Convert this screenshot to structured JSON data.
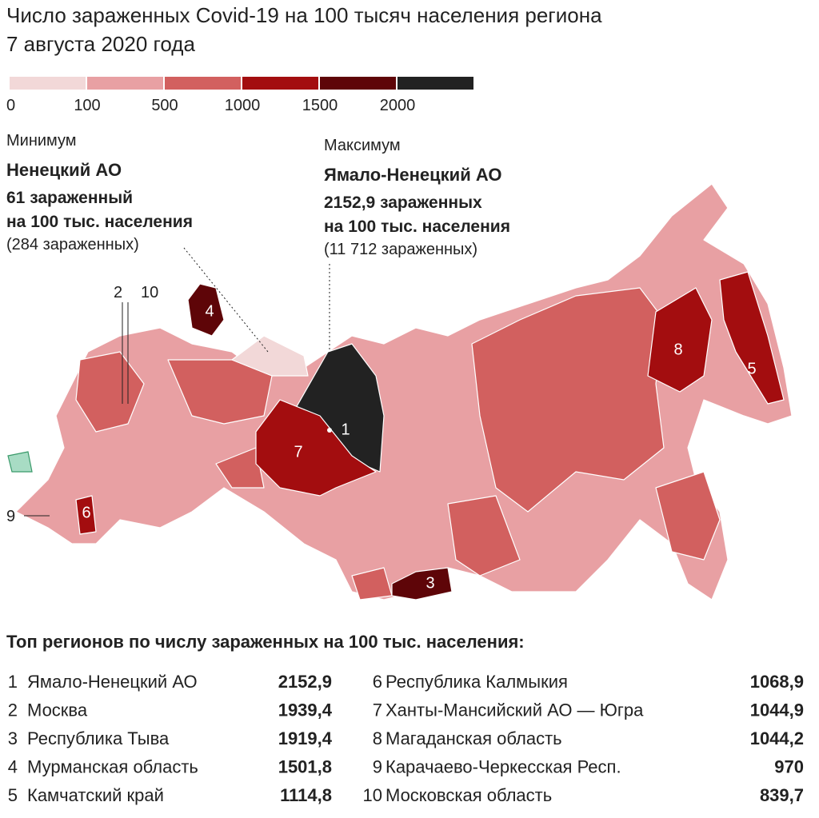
{
  "header": {
    "title": "Число зараженных Covid-19 на 100 тысяч населения региона",
    "subtitle": "7 августа 2020 года"
  },
  "legend": {
    "colors": [
      "#f2d8d8",
      "#e8a0a3",
      "#d2605f",
      "#a30d0f",
      "#5e0508",
      "#222222"
    ],
    "labels": [
      "0",
      "100",
      "500",
      "1000",
      "1500",
      "2000"
    ]
  },
  "minimum": {
    "label": "Минимум",
    "region": "Ненецкий АО",
    "rate_line1": "61 зараженный",
    "rate_line2": "на 100 тыс. населения",
    "count": "(284 зараженных)"
  },
  "maximum": {
    "label": "Максимум",
    "region": "Ямало-Ненецкий АО",
    "rate_line1": "2152,9 зараженных",
    "rate_line2": "на 100 тыс. населения",
    "count": "(11 712 зараженных)"
  },
  "map_markers": [
    "1",
    "2",
    "3",
    "4",
    "5",
    "6",
    "7",
    "8",
    "9",
    "10"
  ],
  "table": {
    "title": "Топ регионов по числу зараженных на 100 тыс. населения:",
    "rows": [
      [
        "1",
        "Ямало-Ненецкий АО",
        "2152,9"
      ],
      [
        "2",
        "Москва",
        "1939,4"
      ],
      [
        "3",
        "Республика Тыва",
        "1919,4"
      ],
      [
        "4",
        "Мурманская область",
        "1501,8"
      ],
      [
        "5",
        "Камчатский край",
        "1114,8"
      ],
      [
        "6",
        "Республика Калмыкия",
        "1068,9"
      ],
      [
        "7",
        "Ханты-Мансийский АО — Югра",
        "1044,9"
      ],
      [
        "8",
        "Магаданская область",
        "1044,2"
      ],
      [
        "9",
        "Карачаево-Черкесская Респ.",
        "970"
      ],
      [
        "10",
        "Московская область",
        "839,7"
      ]
    ]
  }
}
